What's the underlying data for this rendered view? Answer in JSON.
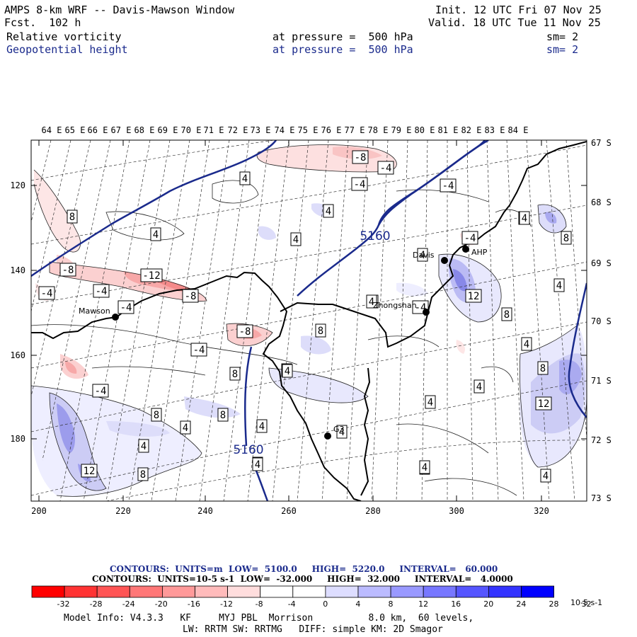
{
  "header": {
    "title": "AMPS 8-km WRF -- Davis-Mawson Window",
    "fcst_label": "Fcst.",
    "fcst_value": "102 h",
    "init": "Init. 12 UTC Fri 07 Nov 25",
    "valid": "Valid. 18 UTC Tue 11 Nov 25",
    "field1_name": "Relative vorticity",
    "field1_level": "at pressure =  500 hPa",
    "field1_sm": "sm= 2",
    "field2_name": "Geopotential height",
    "field2_level": "at pressure =  500 hPa",
    "field2_sm": "sm= 2"
  },
  "map": {
    "top_lon_labels": [
      "64 E",
      "65 E",
      "66 E",
      "67 E",
      "68 E",
      "69 E",
      "70 E",
      "71 E",
      "72 E",
      "73 E",
      "74 E",
      "75 E",
      "76 E",
      "77 E",
      "78 E",
      "79 E",
      "80 E",
      "81 E",
      "82 E",
      "83 E",
      "84 E"
    ],
    "right_lat_labels": [
      "67 S",
      "68 S",
      "69 S",
      "70 S",
      "71 S",
      "72 S",
      "73 S"
    ],
    "left_y_labels": [
      "120",
      "140",
      "160",
      "180"
    ],
    "bottom_x_labels": [
      "200",
      "220",
      "240",
      "260",
      "280",
      "300",
      "320"
    ],
    "stations": [
      {
        "name": "Mawson"
      },
      {
        "name": "Davis"
      },
      {
        "name": "Zhongshan"
      },
      {
        "name": "AHP"
      },
      {
        "name": "G3"
      }
    ],
    "height_contour_labels": [
      "5160",
      "5160"
    ],
    "vorticity_labels": [
      "-8",
      "-4",
      "4",
      "-4",
      "-4",
      "8",
      "4",
      "4",
      "4",
      "-4",
      "-8",
      "-12",
      "-4",
      "-8",
      "-4",
      "-4",
      "4",
      "4",
      "8",
      "12",
      "8",
      "4",
      "-8",
      "-4",
      "8",
      "4",
      "4",
      "8",
      "-4",
      "4",
      "8",
      "4",
      "4",
      "4",
      "8",
      "4",
      "8",
      "4",
      "12",
      "8",
      "4",
      "-4",
      "4",
      "4",
      "12",
      "8",
      "4",
      "4",
      "4",
      "4",
      "4"
    ]
  },
  "contours_info": {
    "line1_label": "CONTOURS:  UNITS=m  LOW=  5100.0     HIGH=  5220.0     INTERVAL=   60.000",
    "line2_label": "CONTOURS:  UNITS=10-5 s-1  LOW=  -32.000     HIGH=  32.000     INTERVAL=   4.0000"
  },
  "colorbar": {
    "ticks": [
      "-32",
      "-28",
      "-24",
      "-20",
      "-16",
      "-12",
      "-8",
      "-4",
      "0",
      "4",
      "8",
      "12",
      "16",
      "20",
      "24",
      "28",
      "32"
    ],
    "units": "10-5 s-1",
    "colors": [
      "#ff0000",
      "#ff3333",
      "#ff5555",
      "#ff7777",
      "#ff9999",
      "#ffbbbb",
      "#ffdddd",
      "#ffffff",
      "#ffffff",
      "#ddddff",
      "#bbbbff",
      "#9999ff",
      "#7777ff",
      "#5555ff",
      "#3333ff",
      "#0000ff"
    ]
  },
  "footer": {
    "line1": "Model Info: V4.3.3   KF     MYJ PBL  Morrison          8.0 km,  60 levels,",
    "line2": "LW: RRTM SW: RRTMG   DIFF: simple KM: 2D Smagor"
  }
}
